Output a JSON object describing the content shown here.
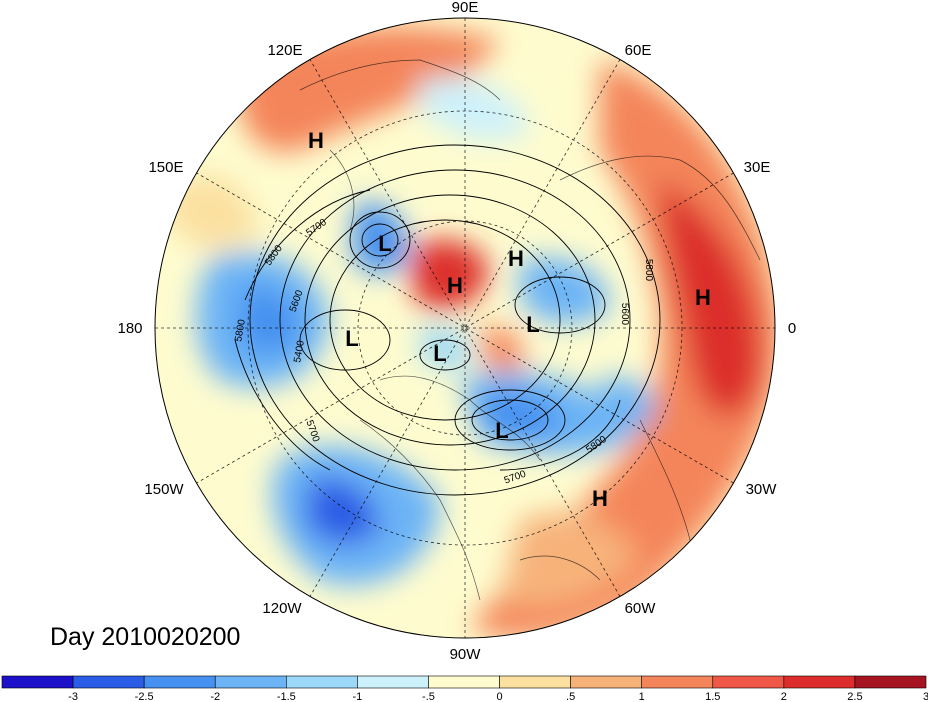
{
  "title": "Day 2010020200",
  "projection": "north-polar-stereographic",
  "longitude_labels": [
    "90E",
    "60E",
    "30E",
    "0",
    "30W",
    "60W",
    "90W",
    "120W",
    "150W",
    "180",
    "150E",
    "120E"
  ],
  "pressure_centers": [
    "L",
    "H",
    "H",
    "L",
    "H",
    "L",
    "L",
    "L",
    "H",
    "H"
  ],
  "contour_labels": [
    "5700",
    "5800",
    "5600",
    "5800",
    "5400",
    "5700",
    "5800",
    "5700",
    "5800",
    "5600"
  ],
  "colorbar": {
    "tick_labels": [
      "-3",
      "-2.5",
      "-2",
      "-1.5",
      "-1",
      "-.5",
      "0",
      ".5",
      "1",
      "1.5",
      "2",
      "2.5",
      "3"
    ],
    "colors": [
      "#1c10c8",
      "#2a5ce6",
      "#4590f0",
      "#6cb4f6",
      "#9cd8f8",
      "#cdf1fb",
      "#fefccf",
      "#fbe0a0",
      "#f7b27a",
      "#f4855a",
      "#ef5746",
      "#dc2d2c",
      "#a51420"
    ]
  },
  "anomaly_colors": {
    "strong_neg": "#2a5ce6",
    "neg": "#6cb4f6",
    "weak_neg": "#cdf1fb",
    "weak_pos": "#fbe0a0",
    "pos": "#f4855a",
    "strong_pos": "#dc2d2c"
  }
}
